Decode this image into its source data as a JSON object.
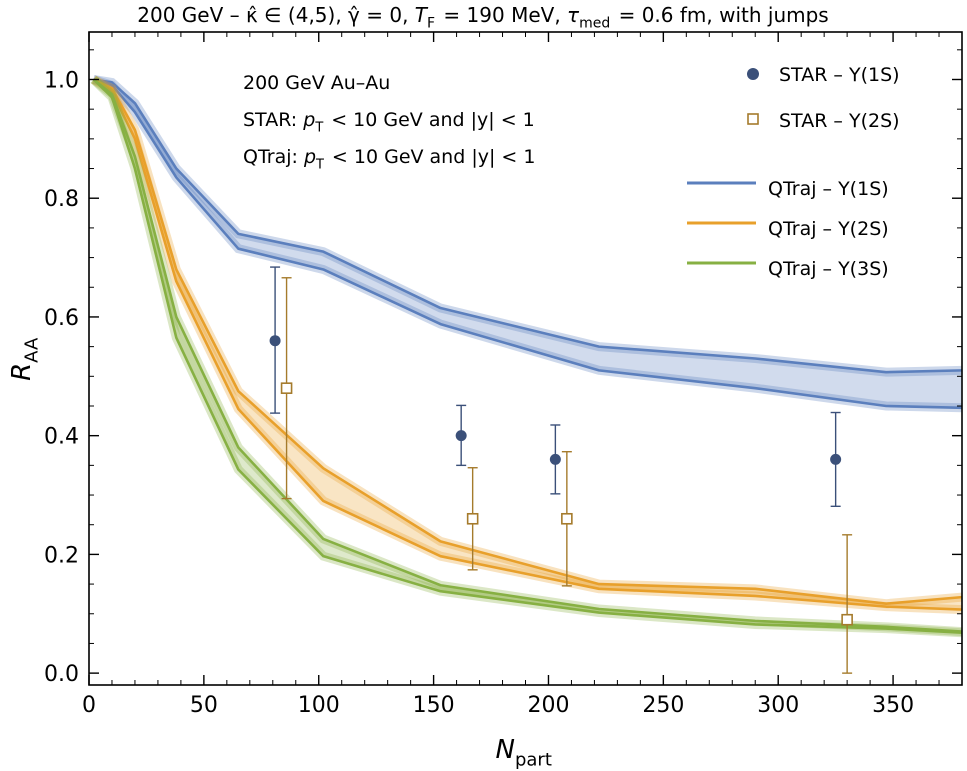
{
  "chart_data": {
    "type": "line",
    "title": "200 GeV – κ̂ ∈ (4,5), γ̂ = 0, T_F = 190 MeV, τ_med = 0.6 fm, with jumps",
    "xlabel": "N_part",
    "ylabel": "R_AA",
    "xlim": [
      0,
      380
    ],
    "ylim": [
      -0.02,
      1.08
    ],
    "x_ticks": [
      0,
      50,
      100,
      150,
      200,
      250,
      300,
      350
    ],
    "y_ticks": [
      0.0,
      0.2,
      0.4,
      0.6,
      0.8,
      1.0
    ],
    "x_tick_labels": [
      "0",
      "50",
      "100",
      "150",
      "200",
      "250",
      "300",
      "350"
    ],
    "y_tick_labels": [
      "0.0",
      "0.2",
      "0.4",
      "0.6",
      "0.8",
      "1.0"
    ],
    "annotations": [
      "200 GeV Au–Au",
      "STAR: p_T < 10 GeV and |y| < 1",
      "QTraj: p_T < 10 GeV and |y| < 1"
    ],
    "legend_position": "top-right",
    "bands": [
      {
        "name": "QTraj – Y(1S)",
        "color": "#5b7fbd",
        "x": [
          2,
          10,
          20,
          38,
          65,
          102,
          153,
          222,
          290,
          347,
          380
        ],
        "upper": [
          1.0,
          0.995,
          0.96,
          0.85,
          0.74,
          0.71,
          0.615,
          0.55,
          0.53,
          0.507,
          0.51
        ],
        "lower": [
          1.0,
          0.99,
          0.945,
          0.835,
          0.715,
          0.68,
          0.588,
          0.51,
          0.48,
          0.45,
          0.447
        ]
      },
      {
        "name": "QTraj – Y(2S)",
        "color": "#e8a02b",
        "x": [
          2,
          10,
          20,
          38,
          65,
          102,
          153,
          222,
          290,
          347,
          380
        ],
        "upper": [
          1.0,
          0.985,
          0.915,
          0.68,
          0.475,
          0.345,
          0.222,
          0.15,
          0.142,
          0.117,
          0.128
        ],
        "lower": [
          1.0,
          0.98,
          0.9,
          0.66,
          0.445,
          0.29,
          0.197,
          0.142,
          0.13,
          0.112,
          0.107
        ]
      },
      {
        "name": "QTraj – Y(3S)",
        "color": "#87b043",
        "x": [
          2,
          10,
          20,
          38,
          65,
          102,
          153,
          222,
          290,
          347,
          380
        ],
        "upper": [
          1.0,
          0.975,
          0.87,
          0.6,
          0.38,
          0.226,
          0.148,
          0.108,
          0.088,
          0.078,
          0.07
        ],
        "lower": [
          1.0,
          0.97,
          0.85,
          0.565,
          0.343,
          0.197,
          0.138,
          0.102,
          0.082,
          0.075,
          0.068
        ]
      }
    ],
    "points": [
      {
        "name": "STAR – Υ(1S)",
        "color": "#3b5079",
        "marker": "filled-circle",
        "x": [
          81,
          162,
          203,
          325
        ],
        "y": [
          0.56,
          0.4,
          0.36,
          0.36
        ],
        "err_up": [
          0.124,
          0.051,
          0.058,
          0.079
        ],
        "err_down": [
          0.122,
          0.05,
          0.058,
          0.079
        ]
      },
      {
        "name": "STAR – Υ(2S)",
        "color": "#a57b2c",
        "marker": "open-square",
        "x": [
          86,
          167,
          208,
          330
        ],
        "y": [
          0.48,
          0.26,
          0.26,
          0.09
        ],
        "err_up": [
          0.186,
          0.086,
          0.113,
          0.143
        ],
        "err_down": [
          0.186,
          0.086,
          0.113,
          0.09
        ]
      }
    ]
  }
}
